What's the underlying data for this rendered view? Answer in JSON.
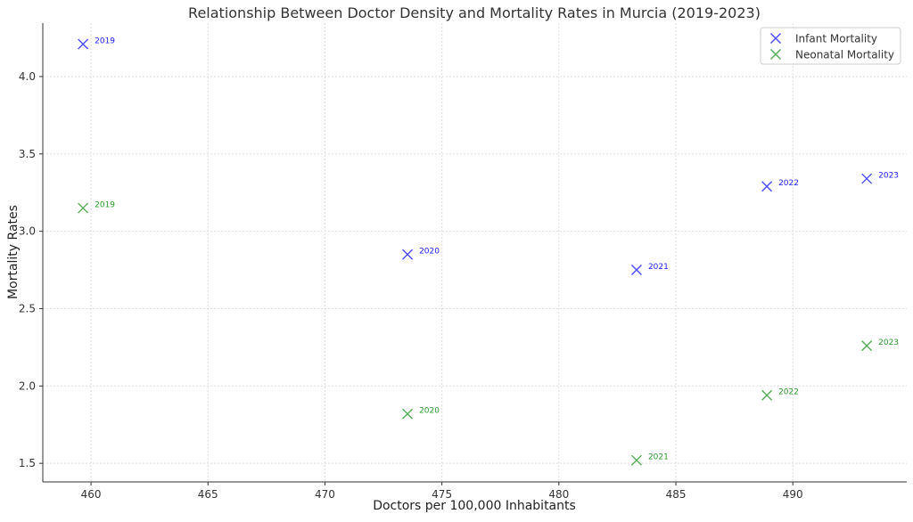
{
  "chart_data": {
    "type": "scatter",
    "title": "Relationship Between Doctor Density and Mortality Rates in Murcia (2019-2023)",
    "xlabel": "Doctors per 100,000 Inhabitants",
    "ylabel": "Mortality Rates",
    "xlim": [
      457.94,
      494.87
    ],
    "ylim": [
      1.38,
      4.345
    ],
    "xticks": [
      460,
      465,
      470,
      475,
      480,
      485,
      490
    ],
    "yticks": [
      1.5,
      2.0,
      2.5,
      3.0,
      3.5,
      4.0
    ],
    "xtick_labels": [
      "460",
      "465",
      "470",
      "475",
      "480",
      "485",
      "490"
    ],
    "ytick_labels": [
      "1.5",
      "2.0",
      "2.5",
      "3.0",
      "3.5",
      "4.0"
    ],
    "grid": true,
    "legend_position": "top-right",
    "x": [
      459.66,
      473.53,
      483.32,
      488.89,
      493.16
    ],
    "point_labels": [
      "2019",
      "2020",
      "2021",
      "2022",
      "2023"
    ],
    "series": [
      {
        "name": "Infant Mortality",
        "color": "#4b4bf5",
        "label_color": "#2020ff",
        "values": [
          4.21,
          2.85,
          2.75,
          3.29,
          3.34
        ]
      },
      {
        "name": "Neonatal Mortality",
        "color": "#55aa55",
        "label_color": "#2a9a2a",
        "values": [
          3.15,
          1.82,
          1.52,
          1.94,
          2.26
        ]
      }
    ]
  }
}
